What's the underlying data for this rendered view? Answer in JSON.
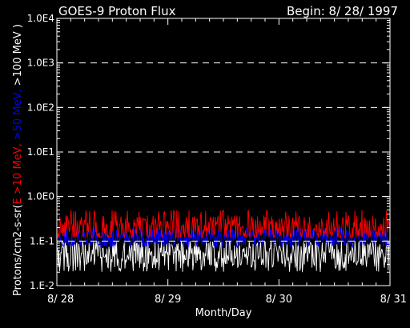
{
  "chart_data": {
    "type": "line",
    "title": "GOES-9 Proton Flux",
    "begin_label": "Begin: 8/ 28/ 1997",
    "xlabel": "Month/Day",
    "ylabel_parts": [
      {
        "text": "Protons/cm2-s-sr(",
        "color": "#ffffff"
      },
      {
        "text": "E >10 MeV, ",
        "color": "#ff0000"
      },
      {
        "text": ">50 MeV, ",
        "color": "#0000ff"
      },
      {
        "text": ">100 MeV )",
        "color": "#ffffff"
      }
    ],
    "yscale": "log",
    "ylim": [
      0.01,
      10000
    ],
    "yticks": [
      {
        "value": 10000,
        "label": "1.0E4"
      },
      {
        "value": 1000,
        "label": "1.0E3"
      },
      {
        "value": 100,
        "label": "1.0E2"
      },
      {
        "value": 10,
        "label": "1.0E1"
      },
      {
        "value": 1,
        "label": "1.0E0"
      },
      {
        "value": 0.1,
        "label": "1.E-1"
      },
      {
        "value": 0.01,
        "label": "1.E-2"
      }
    ],
    "xlim": [
      "1997-08-28",
      "1997-08-31"
    ],
    "xticks": [
      {
        "value": "1997-08-28",
        "label": "8/ 28"
      },
      {
        "value": "1997-08-29",
        "label": "8/ 29"
      },
      {
        "value": "1997-08-30",
        "label": "8/ 30"
      },
      {
        "value": "1997-08-31",
        "label": "8/ 31"
      }
    ],
    "grid": "dashed horizontal at decades",
    "series": [
      {
        "name": "E >10 MeV",
        "color": "#ff0000",
        "typical": 0.2,
        "range": [
          0.12,
          0.5
        ]
      },
      {
        "name": ">50 MeV",
        "color": "#0000ff",
        "typical": 0.12,
        "range": [
          0.07,
          0.2
        ]
      },
      {
        "name": ">100 MeV",
        "color": "#ffffff",
        "typical": 0.05,
        "range": [
          0.02,
          0.1
        ]
      }
    ]
  }
}
